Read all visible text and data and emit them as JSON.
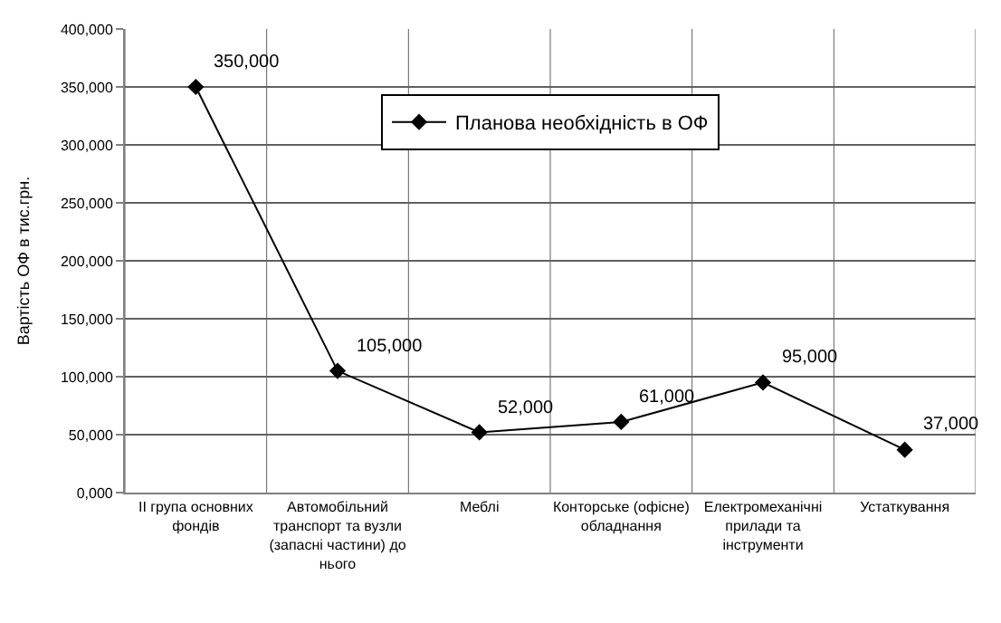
{
  "chart_data": {
    "type": "line",
    "ylabel": "Вартість ОФ в тис.грн.",
    "categories": [
      "II група основних фондів",
      "Автомобільний транспорт та вузли (запасні частини) до нього",
      "Меблі",
      "Конторське (офісне) обладнання",
      "Електромеханічні прилади та інструменти",
      "Устаткування"
    ],
    "series": [
      {
        "name": "Планова необхідність в ОФ",
        "color": "#000000",
        "values": [
          350000,
          105000,
          52000,
          61000,
          95000,
          37000
        ],
        "value_labels": [
          "350,000",
          "105,000",
          "52,000",
          "61,000",
          "95,000",
          "37,000"
        ]
      }
    ],
    "ylim": [
      0,
      400000
    ],
    "yticks": [
      {
        "value": 0,
        "label": "0,000"
      },
      {
        "value": 50000,
        "label": "50,000"
      },
      {
        "value": 100000,
        "label": "100,000"
      },
      {
        "value": 150000,
        "label": "150,000"
      },
      {
        "value": 200000,
        "label": "200,000"
      },
      {
        "value": 250000,
        "label": "250,000"
      },
      {
        "value": 300000,
        "label": "300,000"
      },
      {
        "value": 350000,
        "label": "350,000"
      },
      {
        "value": 400000,
        "label": "400,000"
      }
    ],
    "grid": true,
    "legend": "top",
    "marker": "diamond",
    "line_style": "solid"
  }
}
